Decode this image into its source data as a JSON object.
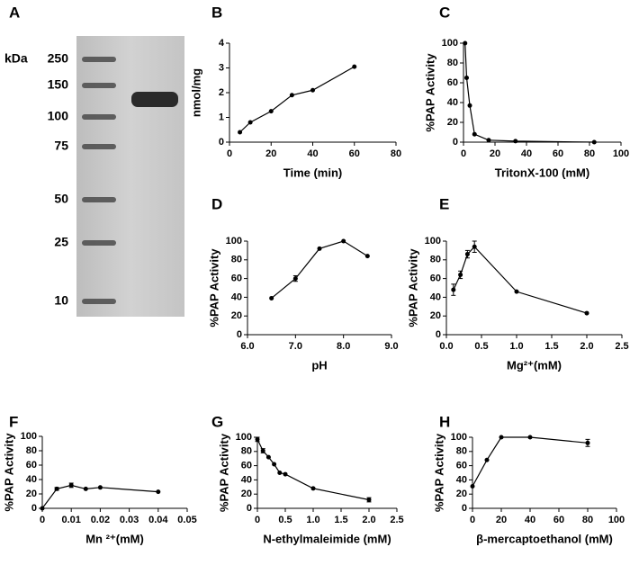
{
  "chart_data": [
    {
      "type": "gel",
      "panel": "A",
      "y_label": "kDa",
      "markers": [
        250,
        150,
        100,
        75,
        50,
        25,
        10
      ]
    },
    {
      "type": "line",
      "panel": "B",
      "x_label": "Time (min)",
      "y_label": "nmol/mg",
      "xlim": [
        0,
        80
      ],
      "ylim": [
        0,
        4
      ],
      "xticks": [
        0,
        20,
        40,
        60,
        80
      ],
      "yticks": [
        0,
        1,
        2,
        3,
        4
      ],
      "x": [
        5,
        10,
        20,
        30,
        40,
        60
      ],
      "values": [
        0.4,
        0.8,
        1.25,
        1.9,
        2.1,
        3.05
      ],
      "errors": [
        null,
        null,
        null,
        null,
        null,
        null
      ],
      "color": "#000000"
    },
    {
      "type": "line",
      "panel": "C",
      "x_label": "TritonX-100 (mM)",
      "y_label": "%PAP Activity",
      "xlim": [
        0,
        100
      ],
      "ylim": [
        0,
        100
      ],
      "xticks": [
        0,
        20,
        40,
        60,
        80,
        100
      ],
      "yticks": [
        0,
        20,
        40,
        60,
        80,
        100
      ],
      "x": [
        1,
        2,
        4,
        7,
        16,
        33,
        83
      ],
      "values": [
        100,
        65,
        37,
        8,
        2,
        1,
        0
      ],
      "errors": [
        null,
        null,
        null,
        null,
        null,
        null,
        null
      ],
      "color": "#000000"
    },
    {
      "type": "line",
      "panel": "D",
      "x_label": "pH",
      "y_label": "%PAP Activity",
      "xlim": [
        6,
        9
      ],
      "ylim": [
        0,
        100
      ],
      "xticks": [
        {
          "value": 6,
          "label": "6.0"
        },
        {
          "value": 7,
          "label": "7.0"
        },
        {
          "value": 8,
          "label": "8.0"
        },
        {
          "value": 9,
          "label": "9.0"
        }
      ],
      "yticks": [
        0,
        20,
        40,
        60,
        80,
        100
      ],
      "x": [
        6.5,
        7,
        7.5,
        8,
        8.5
      ],
      "values": [
        39,
        60,
        92,
        100,
        84
      ],
      "errors": [
        null,
        3,
        null,
        null,
        null
      ],
      "color": "#000000"
    },
    {
      "type": "line",
      "panel": "E",
      "x_label": "Mg²⁺(mM)",
      "y_label": "%PAP Activity",
      "xlim": [
        0,
        2.5
      ],
      "ylim": [
        0,
        100
      ],
      "xticks": [
        {
          "value": 0,
          "label": "0.0"
        },
        0.5,
        {
          "value": 1,
          "label": "1.0"
        },
        1.5,
        {
          "value": 2,
          "label": "2.0"
        },
        2.5
      ],
      "yticks": [
        0,
        20,
        40,
        60,
        80,
        100
      ],
      "x": [
        0.1,
        0.2,
        0.3,
        0.4,
        1.0,
        2.0
      ],
      "values": [
        48,
        64,
        86,
        94,
        46,
        23
      ],
      "errors": [
        6,
        4,
        4,
        6,
        null,
        null
      ],
      "color": "#000000"
    },
    {
      "type": "line",
      "panel": "F",
      "x_label": "Mn ²⁺(mM)",
      "y_label": "%PAP Activity",
      "xlim": [
        0,
        0.05
      ],
      "ylim": [
        0,
        100
      ],
      "xticks": [
        0,
        0.01,
        0.02,
        0.03,
        0.04,
        0.05
      ],
      "yticks": [
        0,
        20,
        40,
        60,
        80,
        100
      ],
      "x": [
        0,
        0.005,
        0.01,
        0.015,
        0.02,
        0.04
      ],
      "values": [
        0,
        27,
        32,
        27,
        29,
        23
      ],
      "errors": [
        null,
        2,
        3,
        null,
        null,
        null
      ],
      "color": "#000000"
    },
    {
      "type": "line",
      "panel": "G",
      "x_label": "N-ethylmaleimide (mM)",
      "y_label": "%PAP Activity",
      "xlim": [
        0,
        2.5
      ],
      "ylim": [
        0,
        100
      ],
      "xticks": [
        0,
        0.5,
        {
          "value": 1,
          "label": "1.0"
        },
        1.5,
        {
          "value": 2,
          "label": "2.0"
        },
        2.5
      ],
      "yticks": [
        0,
        20,
        40,
        60,
        80,
        100
      ],
      "x": [
        0,
        0.1,
        0.2,
        0.3,
        0.4,
        0.5,
        1.0,
        2.0
      ],
      "values": [
        97,
        81,
        72,
        62,
        50,
        48,
        28,
        12
      ],
      "errors": [
        3,
        3,
        null,
        null,
        null,
        null,
        null,
        3
      ],
      "color": "#000000"
    },
    {
      "type": "line",
      "panel": "H",
      "x_label": "β-mercaptoethanol (mM)",
      "y_label": "%PAP Activity",
      "xlim": [
        0,
        100
      ],
      "ylim": [
        0,
        100
      ],
      "xticks": [
        0,
        20,
        40,
        60,
        80,
        100
      ],
      "yticks": [
        0,
        20,
        40,
        60,
        80,
        100
      ],
      "x": [
        0,
        10,
        20,
        40,
        80
      ],
      "values": [
        31,
        68,
        100,
        100,
        92
      ],
      "errors": [
        null,
        null,
        null,
        null,
        5
      ],
      "color": "#000000"
    }
  ]
}
